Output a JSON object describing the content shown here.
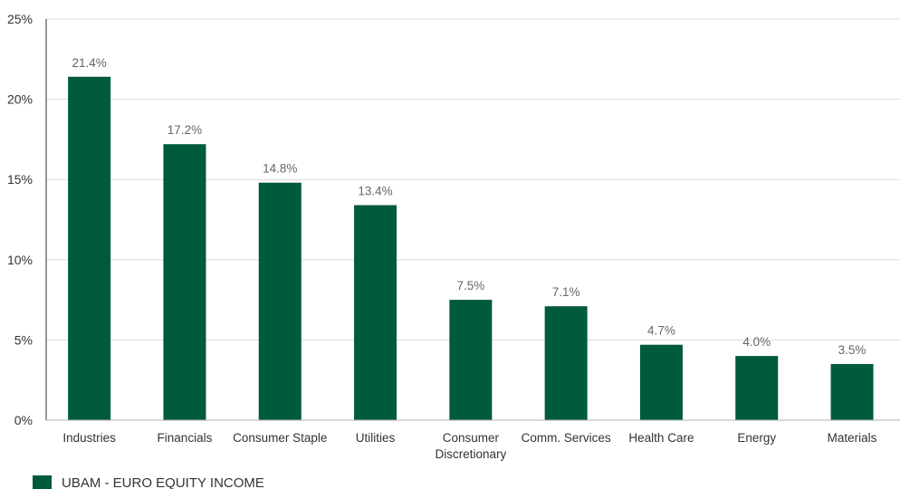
{
  "chart_data": {
    "type": "bar",
    "categories": [
      "Industries",
      "Financials",
      "Consumer Staple",
      "Utilities",
      "Consumer Discretionary",
      "Comm. Services",
      "Health Care",
      "Energy",
      "Materials"
    ],
    "category_lines": [
      [
        "Industries"
      ],
      [
        "Financials"
      ],
      [
        "Consumer Staple"
      ],
      [
        "Utilities"
      ],
      [
        "Consumer",
        "Discretionary"
      ],
      [
        "Comm. Services"
      ],
      [
        "Health Care"
      ],
      [
        "Energy"
      ],
      [
        "Materials"
      ]
    ],
    "series": [
      {
        "name": "UBAM - EURO EQUITY INCOME",
        "values": [
          21.4,
          17.2,
          14.8,
          13.4,
          7.5,
          7.1,
          4.7,
          4.0,
          3.5
        ],
        "data_labels": [
          "21.4%",
          "17.2%",
          "14.8%",
          "13.4%",
          "7.5%",
          "7.1%",
          "4.7%",
          "4.0%",
          "3.5%"
        ],
        "color": "#005a3c"
      }
    ],
    "yticks": [
      0,
      5,
      10,
      15,
      20,
      25
    ],
    "ytick_labels": [
      "0%",
      "5%",
      "10%",
      "15%",
      "20%",
      "25%"
    ],
    "ylim": [
      0,
      25
    ],
    "grid": true,
    "grid_color": "#d9d9d9",
    "legend_position": "bottom-left",
    "title": "",
    "xlabel": "",
    "ylabel": ""
  }
}
